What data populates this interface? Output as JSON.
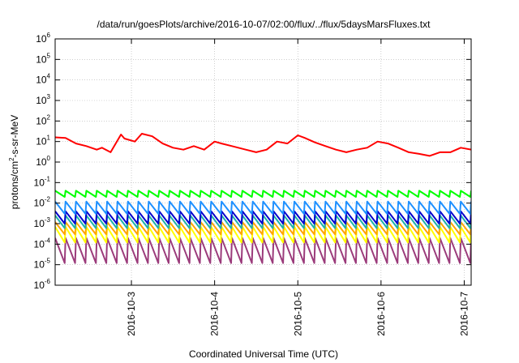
{
  "chart_data": {
    "type": "line",
    "title": "/data/run/goesPlots/archive/2016-10-07/02:00/flux/../flux/5daysMarsFluxes.txt",
    "xlabel": "Coordinated Universal Time (UTC)",
    "ylabel_parts": {
      "base": "protons/cm",
      "sup": "2",
      "rest": "-s-sr-MeV"
    },
    "y_scale": "log",
    "ylim": [
      1e-06,
      1000000.0
    ],
    "y_ticks": [
      {
        "value": -6,
        "base": "10",
        "exp": "-6"
      },
      {
        "value": -5,
        "base": "10",
        "exp": "-5"
      },
      {
        "value": -4,
        "base": "10",
        "exp": "-4"
      },
      {
        "value": -3,
        "base": "10",
        "exp": "-3"
      },
      {
        "value": -2,
        "base": "10",
        "exp": "-2"
      },
      {
        "value": -1,
        "base": "10",
        "exp": "-1"
      },
      {
        "value": 0,
        "base": "10",
        "exp": "0"
      },
      {
        "value": 1,
        "base": "10",
        "exp": "1"
      },
      {
        "value": 2,
        "base": "10",
        "exp": "2"
      },
      {
        "value": 3,
        "base": "10",
        "exp": "3"
      },
      {
        "value": 4,
        "base": "10",
        "exp": "4"
      },
      {
        "value": 5,
        "base": "10",
        "exp": "5"
      },
      {
        "value": 6,
        "base": "10",
        "exp": "6"
      }
    ],
    "xlim": [
      "2016-10-02T02:00",
      "2016-10-07T02:00"
    ],
    "x_ticks": [
      "2016-10-3",
      "2016-10-4",
      "2016-10-5",
      "2016-10-6",
      "2016-10-7"
    ],
    "grid": true,
    "series": [
      {
        "color": "#ff0000",
        "style": "smooth",
        "x": [
          "2016-10-02T02:00",
          "2016-10-02T05:00",
          "2016-10-02T08:00",
          "2016-10-02T11:00",
          "2016-10-02T14:00",
          "2016-10-02T15:30",
          "2016-10-02T18:00",
          "2016-10-02T21:00",
          "2016-10-02T22:00",
          "2016-10-03T01:00",
          "2016-10-03T03:00",
          "2016-10-03T06:00",
          "2016-10-03T09:00",
          "2016-10-03T12:00",
          "2016-10-03T15:00",
          "2016-10-03T18:00",
          "2016-10-03T21:00",
          "2016-10-04T00:00",
          "2016-10-04T02:00",
          "2016-10-04T05:00",
          "2016-10-04T09:00",
          "2016-10-04T12:00",
          "2016-10-04T15:00",
          "2016-10-04T18:00",
          "2016-10-04T21:00",
          "2016-10-05T00:00",
          "2016-10-05T02:00",
          "2016-10-05T05:00",
          "2016-10-05T08:00",
          "2016-10-05T11:00",
          "2016-10-05T14:00",
          "2016-10-05T17:00",
          "2016-10-05T20:00",
          "2016-10-05T23:00",
          "2016-10-06T02:00",
          "2016-10-06T05:00",
          "2016-10-06T08:00",
          "2016-10-06T11:00",
          "2016-10-06T14:00",
          "2016-10-06T17:00",
          "2016-10-06T20:00",
          "2016-10-06T23:00",
          "2016-10-07T02:00"
        ],
        "y": [
          16,
          15,
          8,
          6,
          4,
          5,
          3,
          22,
          14,
          10,
          24,
          18,
          8,
          5,
          4,
          6,
          4,
          10,
          8,
          6,
          4,
          3,
          4,
          10,
          8,
          20,
          15,
          9,
          6,
          4,
          3,
          4,
          5,
          10,
          8,
          5,
          3,
          2.5,
          2,
          3,
          3,
          5,
          4
        ]
      },
      {
        "color": "#00ff00",
        "style": "sawtooth",
        "peak": 0.04,
        "trough": 0.02,
        "x_start": "2016-10-02T02:00",
        "x_end": "2016-10-07T02:00",
        "cycles": 40
      },
      {
        "color": "#1e90ff",
        "style": "sawtooth",
        "peak": 0.012,
        "trough": 0.003,
        "x_start": "2016-10-02T02:00",
        "x_end": "2016-10-07T02:00",
        "cycles": 40
      },
      {
        "color": "#0000cd",
        "style": "sawtooth",
        "peak": 0.004,
        "trough": 0.001,
        "x_start": "2016-10-02T02:00",
        "x_end": "2016-10-07T02:00",
        "cycles": 40
      },
      {
        "color": "#20b2aa",
        "style": "sawtooth",
        "peak": 0.0025,
        "trough": 0.0006,
        "x_start": "2016-10-02T02:00",
        "x_end": "2016-10-07T02:00",
        "cycles": 40
      },
      {
        "color": "#ffa500",
        "style": "sawtooth",
        "peak": 0.0012,
        "trough": 0.0003,
        "x_start": "2016-10-02T02:00",
        "x_end": "2016-10-07T02:00",
        "cycles": 40
      },
      {
        "color": "#ffff00",
        "style": "sawtooth",
        "peak": 0.0007,
        "trough": 0.00012,
        "x_start": "2016-10-02T02:00",
        "x_end": "2016-10-07T02:00",
        "cycles": 40
      },
      {
        "color": "#9b3b7b",
        "style": "sawtooth",
        "peak": 0.0002,
        "trough": 1.2e-05,
        "x_start": "2016-10-02T02:00",
        "x_end": "2016-10-07T02:00",
        "cycles": 40
      }
    ]
  }
}
